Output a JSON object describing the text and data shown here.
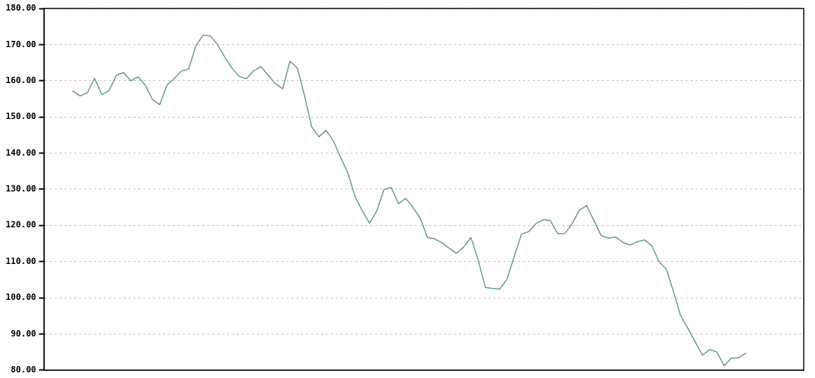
{
  "chart_data": {
    "type": "line",
    "categories": [
      null,
      null,
      null,
      null,
      null,
      null,
      null,
      null,
      null,
      null,
      null,
      null,
      null,
      null,
      null,
      null,
      null,
      null,
      null,
      null,
      null,
      null,
      null,
      null,
      null,
      null,
      null,
      null,
      null,
      null,
      null,
      null,
      null,
      null,
      null,
      null,
      null,
      null,
      null,
      null,
      null,
      null,
      null,
      null,
      null,
      null,
      null,
      null,
      null,
      null,
      null,
      null,
      null,
      null,
      null,
      null,
      null,
      null,
      null,
      null,
      null,
      null,
      null,
      null,
      null,
      null,
      null,
      null,
      null,
      null,
      null,
      null,
      null,
      null,
      null,
      null,
      null,
      null,
      null,
      null,
      null,
      null,
      null,
      null,
      null,
      null,
      null,
      null,
      null,
      null,
      null,
      null,
      null,
      null,
      null,
      null,
      null,
      null,
      null,
      null,
      null,
      null,
      null,
      null,
      null,
      null
    ],
    "series": [
      {
        "color": "#5f9c7c",
        "values": [
          null,
          null,
          null,
          null,
          157.2,
          155.8,
          156.7,
          160.7,
          156.2,
          157.3,
          161.5,
          162.3,
          160,
          161.1,
          158.8,
          154.8,
          153.4,
          158.8,
          160.6,
          162.7,
          163.2,
          169.7,
          172.6,
          172.4,
          170,
          166.5,
          163.5,
          161.2,
          160.6,
          162.8,
          163.9,
          161.5,
          159.2,
          157.8,
          165.4,
          163.6,
          156,
          147.3,
          144.5,
          146.3,
          143.4,
          138.8,
          134.5,
          128,
          124,
          120.6,
          124,
          130,
          130.5,
          126,
          127.5,
          125,
          122,
          116.7,
          116.3,
          115.2,
          113.7,
          112.3,
          114,
          116.7,
          110.5,
          102.9,
          102.6,
          102.4,
          105.2,
          111.5,
          117.6,
          118.3,
          120.5,
          121.6,
          121.3,
          117.7,
          117.8,
          120.5,
          124.2,
          125.5,
          121.4,
          117.2,
          116.5,
          116.8,
          115.3,
          114.6,
          115.5,
          116,
          114.4,
          110,
          108,
          101.7,
          95,
          91.5,
          87.8,
          84.1,
          85.7,
          85,
          81.2,
          83.3,
          83.4,
          84.7,
          null,
          null,
          null,
          null,
          null,
          null,
          null,
          null
        ]
      }
    ],
    "ylim": [
      80,
      180
    ],
    "yticks": [
      {
        "value": 80,
        "label": "80.00"
      },
      {
        "value": 90,
        "label": "90.00"
      },
      {
        "value": 100,
        "label": "100.00"
      },
      {
        "value": 110,
        "label": "110.00"
      },
      {
        "value": 120,
        "label": "120.00"
      },
      {
        "value": 130,
        "label": "130.00"
      },
      {
        "value": 140,
        "label": "140.00"
      },
      {
        "value": 150,
        "label": "150.00"
      },
      {
        "value": 160,
        "label": "160.00"
      },
      {
        "value": 170,
        "label": "170.00"
      },
      {
        "value": 180,
        "label": "180.00"
      }
    ],
    "grid": "y",
    "tick_labels": "y",
    "marker": "none",
    "line_style": "solid",
    "legend": false
  }
}
